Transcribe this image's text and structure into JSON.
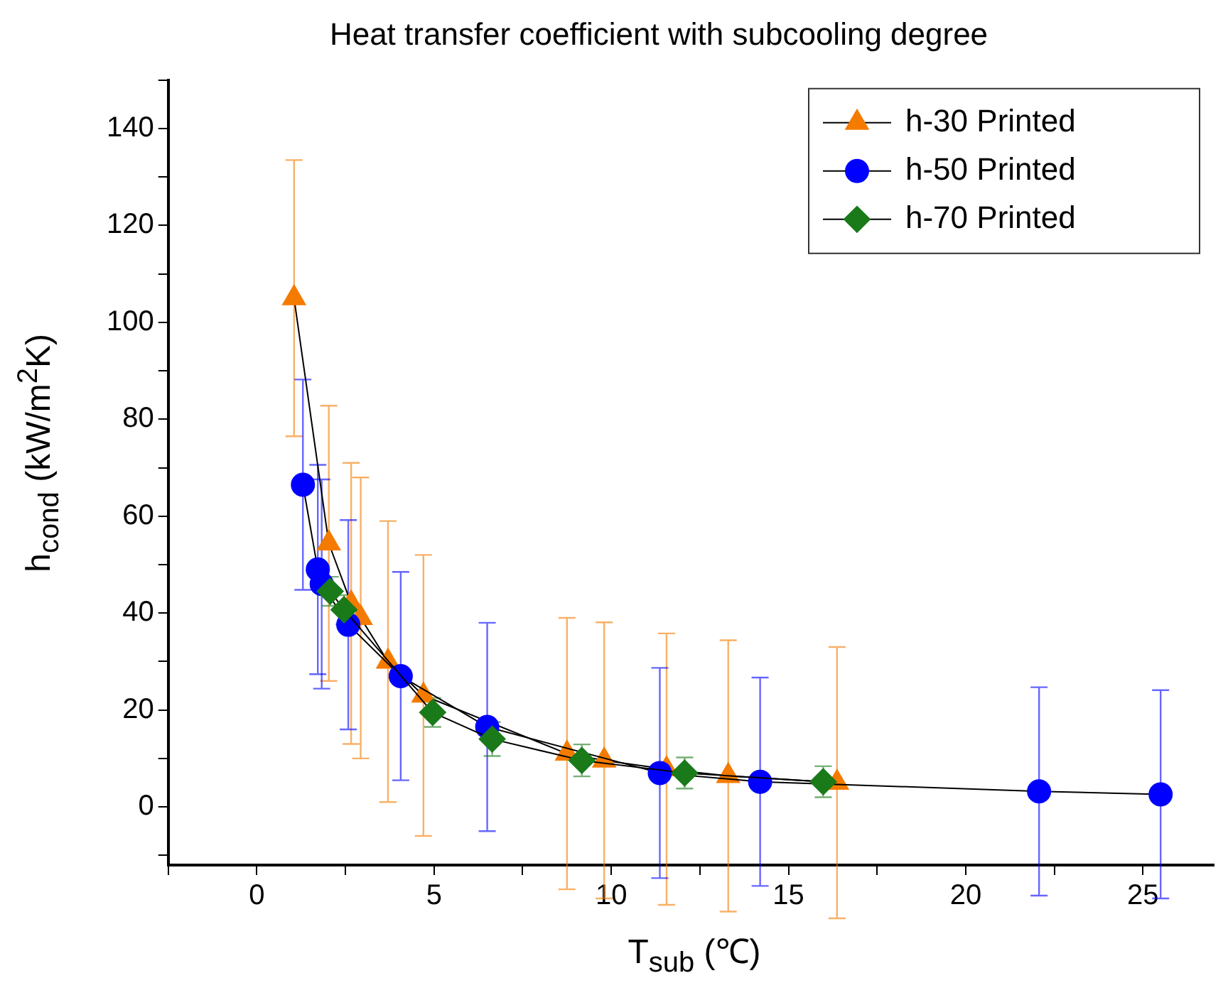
{
  "chart_data": {
    "type": "line",
    "title": "Heat transfer coefficient with subcooling degree",
    "xlabel": "T$_{sub}$ (℃)",
    "ylabel": "h$_{cond}$ (kW/m$^{2}$K)",
    "series": [
      {
        "name": "h-30 Printed",
        "color": "#f47b00",
        "marker": "triangle",
        "x": [
          1.05,
          2.03,
          2.66,
          2.93,
          3.7,
          4.7,
          8.75,
          9.8,
          11.56,
          13.3,
          16.37
        ],
        "values": [
          105,
          54.4,
          42,
          39,
          30,
          23,
          11,
          9.6,
          7.8,
          6.4,
          5
        ],
        "errors": [
          28.5,
          28.4,
          29,
          29,
          29,
          29,
          28,
          28.5,
          28,
          28,
          28
        ]
      },
      {
        "name": "h-50 Printed",
        "color": "#0000ff",
        "marker": "circle",
        "x": [
          1.3,
          1.72,
          1.83,
          2.58,
          4.06,
          6.5,
          11.37,
          14.2,
          22.07,
          25.5
        ],
        "values": [
          66.5,
          49,
          46,
          37.6,
          27,
          16.5,
          7,
          5.2,
          3.2,
          2.6
        ],
        "errors": [
          21.7,
          21.6,
          21.6,
          21.6,
          21.5,
          21.5,
          21.7,
          21.5,
          21.5,
          21.5
        ]
      },
      {
        "name": "h-70 Printed",
        "color": "#1a7a1a",
        "marker": "diamond",
        "x": [
          2.07,
          2.46,
          4.96,
          6.64,
          9.17,
          12.07,
          15.98
        ],
        "values": [
          44.5,
          40.7,
          19.5,
          14,
          9.6,
          7,
          5.2
        ],
        "errors": [
          3,
          3,
          3,
          3.5,
          3.3,
          3.2,
          3.2
        ]
      }
    ],
    "xlim": [
      -2.5,
      27
    ],
    "xticks": [
      {
        "value": -2.5,
        "label": null
      },
      0,
      {
        "value": 2.5,
        "label": null
      },
      5,
      {
        "value": 7.5,
        "label": null
      },
      10,
      {
        "value": 12.5,
        "label": null
      },
      15,
      {
        "value": 17.5,
        "label": null
      },
      20,
      {
        "value": 22.5,
        "label": null
      },
      25
    ],
    "ylim": [
      -12,
      150
    ],
    "yticks": [
      {
        "value": -10,
        "label": null
      },
      0,
      {
        "value": 10,
        "label": null
      },
      20,
      {
        "value": 30,
        "label": null
      },
      40,
      {
        "value": 50,
        "label": null
      },
      60,
      {
        "value": 70,
        "label": null
      },
      80,
      {
        "value": 90,
        "label": null
      },
      100,
      {
        "value": 110,
        "label": null
      },
      120,
      {
        "value": 130,
        "label": null
      },
      140,
      {
        "value": 150,
        "label": null
      }
    ],
    "grid": false,
    "legend": "top right",
    "line_style": "solid"
  }
}
